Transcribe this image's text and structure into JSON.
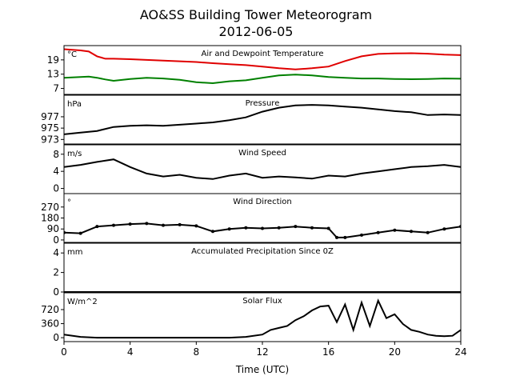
{
  "figure": {
    "title_line1": "AO&SS Building Tower Meteorogram",
    "title_line2": "2012-06-05",
    "xlabel": "Time (UTC)"
  },
  "chart_data": [
    {
      "type": "line",
      "panel_title": "Air and Dewpoint Temperature",
      "unit": "°C",
      "x_range": [
        0,
        24
      ],
      "ylim": [
        4.5,
        25
      ],
      "yticks": [
        7,
        13,
        19
      ],
      "x": [
        0,
        1,
        1.5,
        2,
        2.5,
        3,
        4,
        5,
        6,
        7,
        8,
        9,
        10,
        11,
        12,
        13,
        14,
        15,
        16,
        17,
        18,
        19,
        20,
        21,
        22,
        23,
        24
      ],
      "series": [
        {
          "color": "#e00000",
          "values": [
            23.5,
            23,
            22.5,
            20.5,
            19.5,
            19.5,
            19.3,
            19.0,
            18.7,
            18.4,
            18.1,
            17.6,
            17.2,
            16.8,
            16.2,
            15.5,
            15.0,
            15.5,
            16.2,
            18.5,
            20.5,
            21.5,
            21.7,
            21.8,
            21.6,
            21.2,
            21.0
          ]
        },
        {
          "color": "#008000",
          "values": [
            11.5,
            11.8,
            12.0,
            11.5,
            10.8,
            10.2,
            11.0,
            11.5,
            11.2,
            10.6,
            9.6,
            9.2,
            10.0,
            10.4,
            11.5,
            12.5,
            12.8,
            12.5,
            11.8,
            11.5,
            11.2,
            11.2,
            11.0,
            10.9,
            11.0,
            11.2,
            11.1
          ]
        }
      ]
    },
    {
      "type": "line",
      "panel_title": "Pressure",
      "unit": "hPa",
      "x_range": [
        0,
        24
      ],
      "ylim": [
        972.2,
        980.8
      ],
      "yticks": [
        973,
        975,
        977
      ],
      "x": [
        0,
        1,
        2,
        3,
        4,
        5,
        6,
        7,
        8,
        9,
        10,
        11,
        12,
        13,
        14,
        15,
        16,
        17,
        18,
        19,
        20,
        21,
        22,
        23,
        24
      ],
      "series": [
        {
          "color": "#000000",
          "values": [
            973.9,
            974.2,
            974.5,
            975.2,
            975.4,
            975.5,
            975.4,
            975.6,
            975.8,
            976.0,
            976.4,
            976.9,
            977.9,
            978.6,
            979.0,
            979.1,
            979.0,
            978.8,
            978.6,
            978.3,
            978.0,
            977.8,
            977.3,
            977.4,
            977.3
          ]
        }
      ]
    },
    {
      "type": "line",
      "panel_title": "Wind Speed",
      "unit": "m/s",
      "x_range": [
        0,
        24
      ],
      "ylim": [
        -1.2,
        10.2
      ],
      "yticks": [
        0,
        4,
        8
      ],
      "x": [
        0,
        1,
        2,
        3,
        4,
        5,
        6,
        7,
        8,
        9,
        10,
        11,
        12,
        13,
        14,
        15,
        16,
        17,
        18,
        19,
        20,
        21,
        22,
        23,
        24
      ],
      "series": [
        {
          "color": "#000000",
          "values": [
            5.0,
            5.5,
            6.2,
            6.8,
            5.0,
            3.5,
            2.8,
            3.2,
            2.5,
            2.2,
            3.0,
            3.5,
            2.5,
            2.8,
            2.6,
            2.3,
            3.0,
            2.8,
            3.5,
            4.0,
            4.5,
            5.0,
            5.2,
            5.5,
            5.0
          ]
        }
      ]
    },
    {
      "type": "scatter",
      "panel_title": "Wind Direction",
      "unit": "°",
      "x_range": [
        0,
        24
      ],
      "ylim": [
        -20,
        380
      ],
      "yticks": [
        0,
        90,
        180,
        270
      ],
      "x": [
        0,
        1,
        2,
        3,
        4,
        5,
        6,
        7,
        8,
        9,
        10,
        11,
        12,
        13,
        14,
        15,
        16,
        16.5,
        17,
        18,
        19,
        20,
        21,
        22,
        23,
        24
      ],
      "series": [
        {
          "color": "#000000",
          "values": [
            60,
            55,
            110,
            120,
            130,
            135,
            120,
            125,
            115,
            70,
            90,
            100,
            95,
            100,
            110,
            100,
            95,
            20,
            20,
            40,
            60,
            80,
            70,
            60,
            90,
            110
          ]
        }
      ]
    },
    {
      "type": "line",
      "panel_title": "Accumulated Precipitation Since 0Z",
      "unit": "mm",
      "x_range": [
        0,
        24
      ],
      "ylim": [
        0,
        5
      ],
      "yticks": [
        0,
        2,
        4
      ],
      "x": [
        0,
        24
      ],
      "series": [
        {
          "color": "#000000",
          "values": [
            0,
            0
          ]
        }
      ]
    },
    {
      "type": "line",
      "panel_title": "Solar Flux",
      "unit": "W/m^2",
      "x_range": [
        0,
        24
      ],
      "ylim": [
        -100,
        1150
      ],
      "yticks": [
        0,
        360,
        720
      ],
      "x": [
        0,
        1,
        2,
        4,
        6,
        8,
        10,
        11,
        12,
        12.5,
        13,
        13.5,
        14,
        14.5,
        15,
        15.5,
        16,
        16.5,
        17,
        17.5,
        18,
        18.5,
        19,
        19.5,
        20,
        20.5,
        21,
        21.5,
        22,
        22.5,
        23,
        23.5,
        24
      ],
      "series": [
        {
          "color": "#000000",
          "values": [
            80,
            20,
            0,
            0,
            0,
            0,
            0,
            20,
            80,
            200,
            250,
            300,
            450,
            550,
            700,
            800,
            820,
            400,
            850,
            200,
            900,
            300,
            950,
            500,
            600,
            350,
            200,
            150,
            80,
            50,
            40,
            50,
            200
          ]
        }
      ]
    }
  ]
}
